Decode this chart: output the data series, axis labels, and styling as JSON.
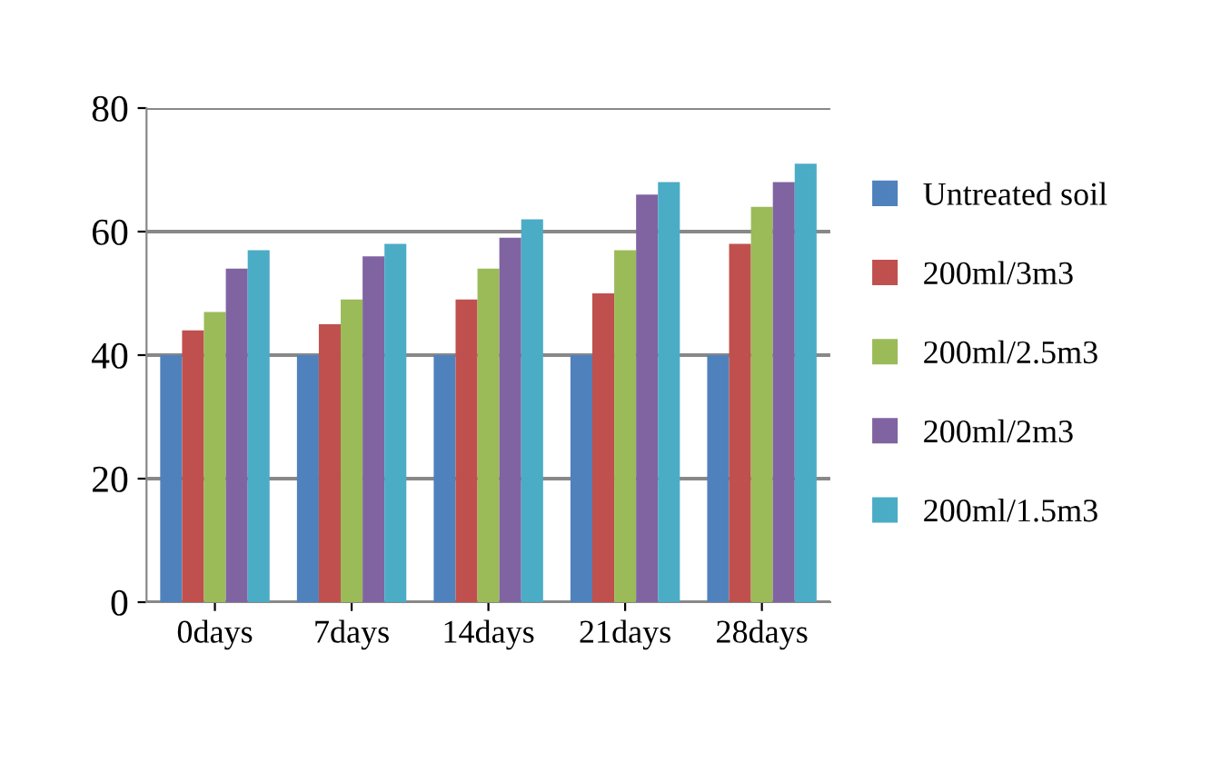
{
  "chart_data": {
    "type": "bar",
    "categories": [
      "0days",
      "7days",
      "14days",
      "21days",
      "28days"
    ],
    "series": [
      {
        "name": "Untreated soil",
        "color": "#4f81bd",
        "values": [
          40,
          40,
          40,
          40,
          40
        ]
      },
      {
        "name": "200ml/3m3",
        "color": "#c0504d",
        "values": [
          44,
          45,
          49,
          50,
          58
        ]
      },
      {
        "name": "200ml/2.5m3",
        "color": "#9bbb59",
        "values": [
          47,
          49,
          54,
          57,
          64
        ]
      },
      {
        "name": "200ml/2m3",
        "color": "#8064a2",
        "values": [
          54,
          56,
          59,
          66,
          68
        ]
      },
      {
        "name": "200ml/1.5m3",
        "color": "#4bacc6",
        "values": [
          57,
          58,
          62,
          68,
          71
        ]
      }
    ],
    "ylim": [
      0,
      80
    ],
    "yticks": [
      0,
      20,
      40,
      60,
      80
    ],
    "grid": "y",
    "legend": "right"
  }
}
